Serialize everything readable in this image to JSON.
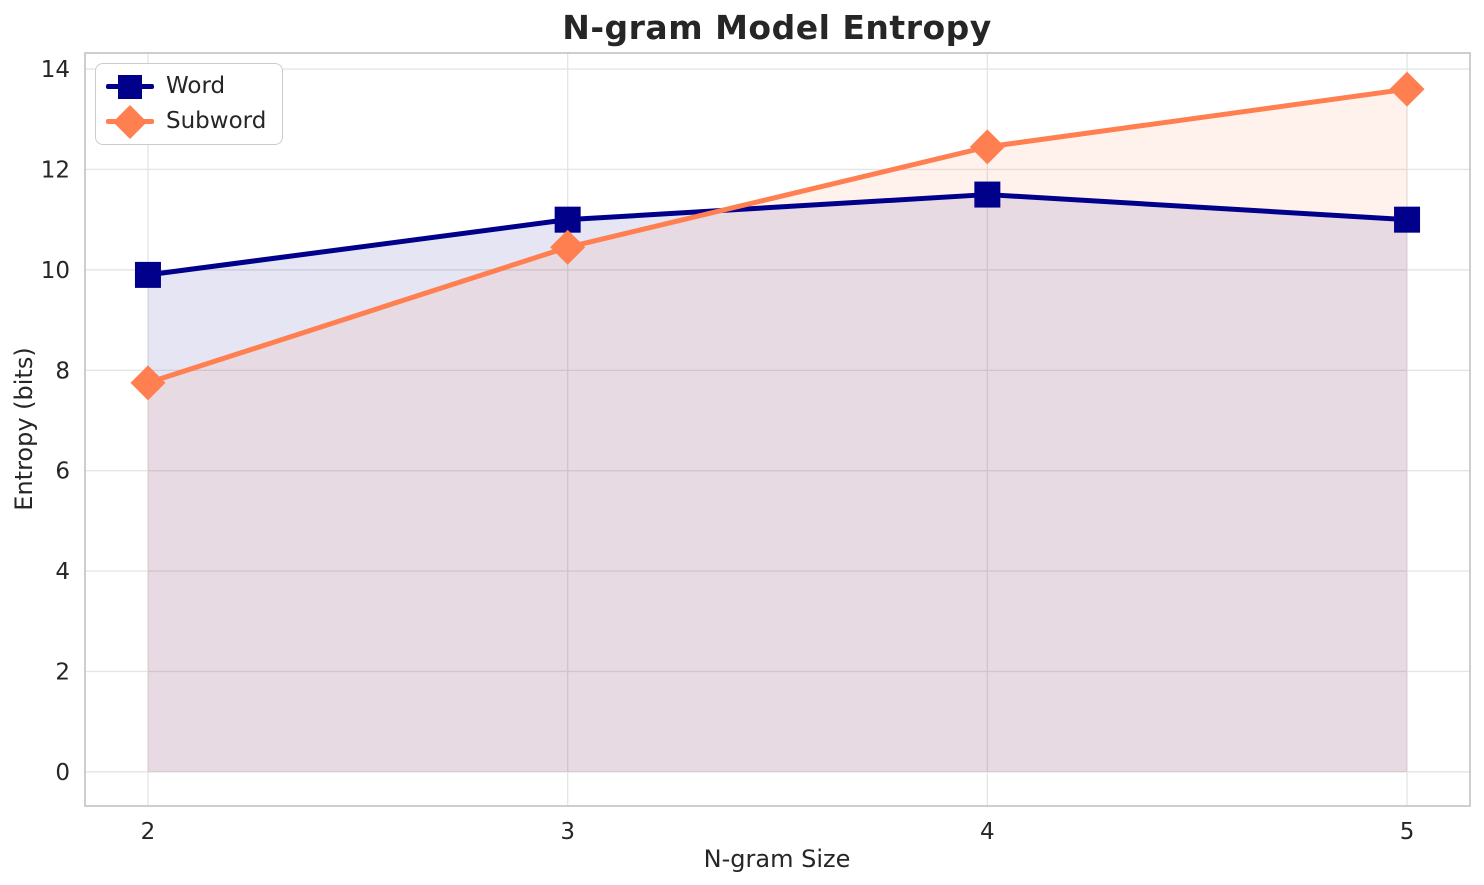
{
  "chart_data": {
    "type": "line",
    "title": "N-gram Model Entropy",
    "xlabel": "N-gram Size",
    "ylabel": "Entropy (bits)",
    "x": [
      2,
      3,
      4,
      5
    ],
    "series": [
      {
        "name": "Word",
        "color": "#00008B",
        "marker": "square",
        "values": [
          9.9,
          11.0,
          11.5,
          11.0
        ]
      },
      {
        "name": "Subword",
        "color": "#FF7F50",
        "marker": "diamond",
        "values": [
          7.75,
          10.45,
          12.45,
          13.6
        ]
      }
    ],
    "fill": {
      "to_value": 0,
      "alpha": 0.1
    },
    "xticks": [
      "2",
      "3",
      "4",
      "5"
    ],
    "yticks": [
      "0",
      "2",
      "4",
      "6",
      "8",
      "10",
      "12",
      "14"
    ],
    "xlim": [
      1.85,
      5.15
    ],
    "ylim": [
      -0.68,
      14.32
    ],
    "grid": true,
    "legend_position": "upper-left",
    "colors": {
      "grid": "#E5E5E5",
      "spine": "#C8C8C8",
      "text": "#262626",
      "background": "#FFFFFF"
    }
  }
}
